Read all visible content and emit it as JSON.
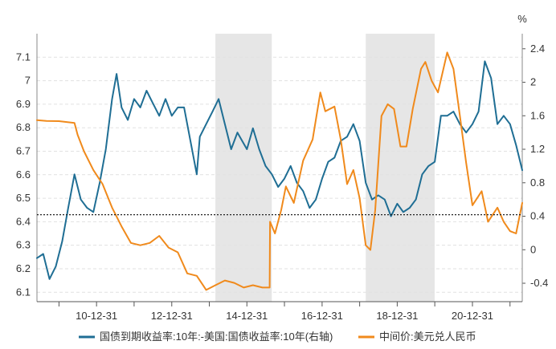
{
  "chart_data": {
    "type": "line",
    "x_ticks": [
      "10-12-31",
      "12-12-31",
      "14-12-31",
      "16-12-31",
      "18-12-31",
      "20-12-31"
    ],
    "x_range": [
      "2009-06-01",
      "2022-04-30"
    ],
    "y_left": {
      "lim": [
        6.06,
        7.2
      ],
      "ticks": [
        6.1,
        6.2,
        6.3,
        6.4,
        6.5,
        6.6,
        6.7,
        6.8,
        6.9,
        7,
        7.1
      ]
    },
    "y_right": {
      "lim": [
        -0.62,
        2.58
      ],
      "ticks": [
        -0.4,
        0,
        0.4,
        0.8,
        1.2,
        1.6,
        2,
        2.4
      ],
      "unit": "%"
    },
    "reference_line": {
      "axis": "left",
      "value": 6.43,
      "style": "dotted",
      "color": "#222222"
    },
    "shaded_periods": [
      {
        "start": "2014-03-01",
        "end": "2015-08-31"
      },
      {
        "start": "2018-03-01",
        "end": "2019-12-31"
      }
    ],
    "series": [
      {
        "name": "国债到期收益率:10年:-美国:国债收益率:10年(右轴)",
        "axis": "right",
        "color": "#1f6e94",
        "points": [
          [
            "2009-06-01",
            -0.1
          ],
          [
            "2009-08-01",
            -0.05
          ],
          [
            "2009-10-01",
            -0.35
          ],
          [
            "2009-12-01",
            -0.2
          ],
          [
            "2010-02-01",
            0.1
          ],
          [
            "2010-04-01",
            0.5
          ],
          [
            "2010-06-01",
            0.9
          ],
          [
            "2010-08-01",
            0.6
          ],
          [
            "2010-10-01",
            0.5
          ],
          [
            "2010-12-01",
            0.45
          ],
          [
            "2011-02-01",
            0.8
          ],
          [
            "2011-04-01",
            1.2
          ],
          [
            "2011-06-01",
            1.8
          ],
          [
            "2011-07-15",
            2.1
          ],
          [
            "2011-09-01",
            1.7
          ],
          [
            "2011-11-01",
            1.55
          ],
          [
            "2012-01-01",
            1.8
          ],
          [
            "2012-03-01",
            1.7
          ],
          [
            "2012-05-01",
            1.9
          ],
          [
            "2012-07-01",
            1.75
          ],
          [
            "2012-09-01",
            1.6
          ],
          [
            "2012-11-01",
            1.8
          ],
          [
            "2013-01-01",
            1.6
          ],
          [
            "2013-03-01",
            1.7
          ],
          [
            "2013-05-01",
            1.7
          ],
          [
            "2013-07-01",
            1.3
          ],
          [
            "2013-09-01",
            0.9
          ],
          [
            "2013-10-01",
            1.35
          ],
          [
            "2013-12-01",
            1.5
          ],
          [
            "2014-02-01",
            1.65
          ],
          [
            "2014-04-01",
            1.8
          ],
          [
            "2014-06-01",
            1.5
          ],
          [
            "2014-08-01",
            1.2
          ],
          [
            "2014-10-01",
            1.4
          ],
          [
            "2015-01-01",
            1.2
          ],
          [
            "2015-03-01",
            1.45
          ],
          [
            "2015-05-01",
            1.2
          ],
          [
            "2015-07-01",
            1.0
          ],
          [
            "2015-09-01",
            0.9
          ],
          [
            "2015-11-01",
            0.75
          ],
          [
            "2016-01-01",
            0.85
          ],
          [
            "2016-03-01",
            1.0
          ],
          [
            "2016-05-01",
            0.8
          ],
          [
            "2016-07-01",
            0.7
          ],
          [
            "2016-09-01",
            0.5
          ],
          [
            "2016-11-01",
            0.6
          ],
          [
            "2017-01-01",
            0.85
          ],
          [
            "2017-03-01",
            1.05
          ],
          [
            "2017-05-01",
            1.1
          ],
          [
            "2017-07-01",
            1.3
          ],
          [
            "2017-09-01",
            1.35
          ],
          [
            "2017-11-01",
            1.5
          ],
          [
            "2018-01-01",
            1.3
          ],
          [
            "2018-03-01",
            0.8
          ],
          [
            "2018-05-01",
            0.6
          ],
          [
            "2018-07-01",
            0.65
          ],
          [
            "2018-09-01",
            0.6
          ],
          [
            "2018-11-01",
            0.4
          ],
          [
            "2019-01-01",
            0.55
          ],
          [
            "2019-03-01",
            0.45
          ],
          [
            "2019-05-01",
            0.5
          ],
          [
            "2019-07-01",
            0.6
          ],
          [
            "2019-09-01",
            0.9
          ],
          [
            "2019-11-01",
            1.0
          ],
          [
            "2020-01-01",
            1.05
          ],
          [
            "2020-03-01",
            1.6
          ],
          [
            "2020-05-01",
            1.6
          ],
          [
            "2020-07-01",
            1.65
          ],
          [
            "2020-09-01",
            1.5
          ],
          [
            "2020-11-01",
            1.4
          ],
          [
            "2021-01-01",
            1.5
          ],
          [
            "2021-03-01",
            1.65
          ],
          [
            "2021-05-01",
            2.25
          ],
          [
            "2021-07-01",
            2.05
          ],
          [
            "2021-09-01",
            1.5
          ],
          [
            "2021-11-01",
            1.6
          ],
          [
            "2022-01-01",
            1.5
          ],
          [
            "2022-03-01",
            1.25
          ],
          [
            "2022-04-30",
            0.95
          ]
        ]
      },
      {
        "name": "中间价:美元兑人民币",
        "axis": "left",
        "color": "#f08a1c",
        "points": [
          [
            "2009-06-01",
            6.832
          ],
          [
            "2009-09-01",
            6.829
          ],
          [
            "2010-01-01",
            6.828
          ],
          [
            "2010-06-01",
            6.82
          ],
          [
            "2010-07-01",
            6.77
          ],
          [
            "2010-09-01",
            6.7
          ],
          [
            "2010-12-01",
            6.62
          ],
          [
            "2011-03-01",
            6.56
          ],
          [
            "2011-06-01",
            6.46
          ],
          [
            "2011-09-01",
            6.38
          ],
          [
            "2011-12-01",
            6.31
          ],
          [
            "2012-03-01",
            6.3
          ],
          [
            "2012-06-01",
            6.31
          ],
          [
            "2012-09-01",
            6.34
          ],
          [
            "2012-12-01",
            6.29
          ],
          [
            "2013-03-01",
            6.27
          ],
          [
            "2013-06-01",
            6.18
          ],
          [
            "2013-09-01",
            6.17
          ],
          [
            "2013-12-01",
            6.11
          ],
          [
            "2014-03-01",
            6.13
          ],
          [
            "2014-06-01",
            6.15
          ],
          [
            "2014-09-01",
            6.14
          ],
          [
            "2014-12-01",
            6.12
          ],
          [
            "2015-03-01",
            6.13
          ],
          [
            "2015-06-01",
            6.12
          ],
          [
            "2015-08-10",
            6.12
          ],
          [
            "2015-08-14",
            6.4
          ],
          [
            "2015-10-01",
            6.35
          ],
          [
            "2015-12-01",
            6.45
          ],
          [
            "2016-01-15",
            6.55
          ],
          [
            "2016-04-01",
            6.48
          ],
          [
            "2016-07-01",
            6.66
          ],
          [
            "2016-10-01",
            6.75
          ],
          [
            "2016-12-15",
            6.95
          ],
          [
            "2017-02-01",
            6.87
          ],
          [
            "2017-05-01",
            6.89
          ],
          [
            "2017-07-01",
            6.75
          ],
          [
            "2017-09-01",
            6.56
          ],
          [
            "2017-11-01",
            6.62
          ],
          [
            "2018-01-01",
            6.5
          ],
          [
            "2018-03-01",
            6.3
          ],
          [
            "2018-04-15",
            6.28
          ],
          [
            "2018-06-01",
            6.45
          ],
          [
            "2018-08-01",
            6.85
          ],
          [
            "2018-10-01",
            6.9
          ],
          [
            "2018-12-01",
            6.88
          ],
          [
            "2019-02-01",
            6.72
          ],
          [
            "2019-04-01",
            6.72
          ],
          [
            "2019-06-01",
            6.88
          ],
          [
            "2019-08-20",
            7.05
          ],
          [
            "2019-10-01",
            7.08
          ],
          [
            "2019-12-01",
            7.0
          ],
          [
            "2020-02-01",
            6.95
          ],
          [
            "2020-05-01",
            7.12
          ],
          [
            "2020-07-01",
            7.05
          ],
          [
            "2020-09-01",
            6.85
          ],
          [
            "2020-11-01",
            6.65
          ],
          [
            "2021-01-01",
            6.47
          ],
          [
            "2021-04-01",
            6.53
          ],
          [
            "2021-06-01",
            6.4
          ],
          [
            "2021-09-01",
            6.46
          ],
          [
            "2021-11-01",
            6.4
          ],
          [
            "2022-01-01",
            6.36
          ],
          [
            "2022-03-01",
            6.35
          ],
          [
            "2022-04-30",
            6.48
          ]
        ]
      }
    ]
  }
}
